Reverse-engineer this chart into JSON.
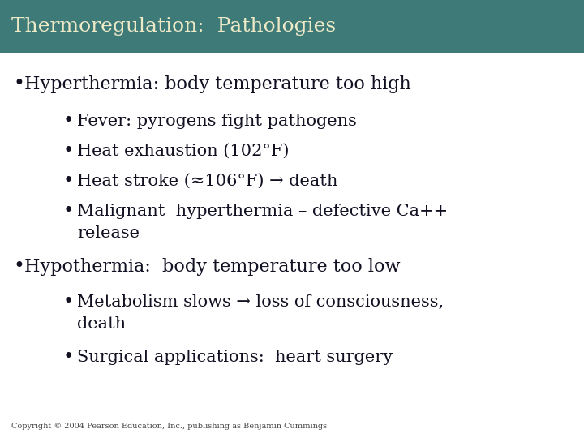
{
  "title": "Thermoregulation:  Pathologies",
  "title_bg_color": "#3d7a78",
  "title_text_color": "#eeeac8",
  "body_bg_color": "#ffffff",
  "text_color": "#111122",
  "copyright": "Copyright © 2004 Pearson Education, Inc., publishing as Benjamin Cummings",
  "lines": [
    {
      "level": 0,
      "text": "Hyperthermia: body temperature too high"
    },
    {
      "level": 1,
      "text": "Fever: pyrogens fight pathogens"
    },
    {
      "level": 1,
      "text": "Heat exhaustion (102°F)"
    },
    {
      "level": 1,
      "text": "Heat stroke (≈106°F) → death"
    },
    {
      "level": 1,
      "text": "Malignant  hyperthermia – defective Ca++"
    },
    {
      "level": 2,
      "text": "release"
    },
    {
      "level": 0,
      "text": "Hypothermia:  body temperature too low"
    },
    {
      "level": 1,
      "text": "Metabolism slows → loss of consciousness,"
    },
    {
      "level": 2,
      "text": "death"
    },
    {
      "level": 1,
      "text": "Surgical applications:  heart surgery"
    }
  ],
  "title_fontsize": 18,
  "body_fontsize": 16,
  "sub_fontsize": 15,
  "copyright_fontsize": 7
}
